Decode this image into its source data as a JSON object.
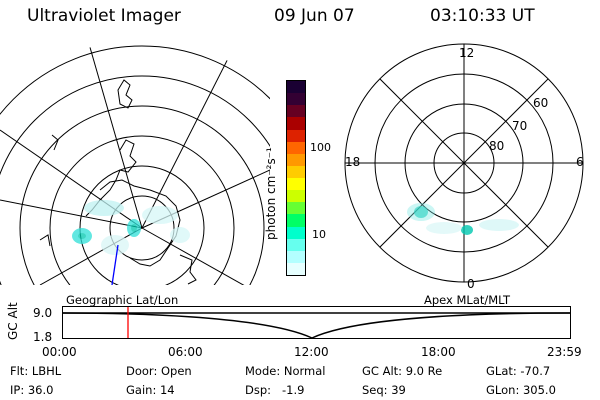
{
  "header": {
    "title": "Ultraviolet Imager",
    "date": "09 Jun 07",
    "time": "03:10:33 UT"
  },
  "left_panel": {
    "label": "Geographic Lat/Lon"
  },
  "right_panel": {
    "label": "Apex MLat/MLT",
    "mlt_labels": [
      "12",
      "18",
      "6",
      "0"
    ],
    "lat_labels": [
      "60",
      "70",
      "80"
    ]
  },
  "colorbar": {
    "unit_label": "photon cm⁻²s⁻¹",
    "ticks": [
      "100",
      "10"
    ],
    "colors": [
      "#1a0033",
      "#330033",
      "#660022",
      "#aa0000",
      "#dd2200",
      "#ff6600",
      "#ff9900",
      "#ffcc00",
      "#ffff00",
      "#ccff00",
      "#66ff33",
      "#00ff66",
      "#00ffcc",
      "#66ffee",
      "#b3ffff",
      "#e6ffff"
    ]
  },
  "timeline": {
    "axis_label": "GC Alt",
    "y_ticks": [
      "9.0",
      "1.8"
    ],
    "x_ticks": [
      "00:00",
      "06:00",
      "12:00",
      "18:00",
      "23:59"
    ],
    "marker_color": "#ff0000"
  },
  "info": {
    "flt": "Flt: LBHL",
    "ip": "IP: 36.0",
    "door": "Door: Open",
    "gain": "Gain: 14",
    "mode": "Mode: Normal",
    "dsp": "Dsp:   -1.9",
    "gc_alt": "GC Alt: 9.0 Re",
    "seq": "Seq: 39",
    "glat": "GLat: -70.7",
    "glon": "GLon: 305.0"
  }
}
